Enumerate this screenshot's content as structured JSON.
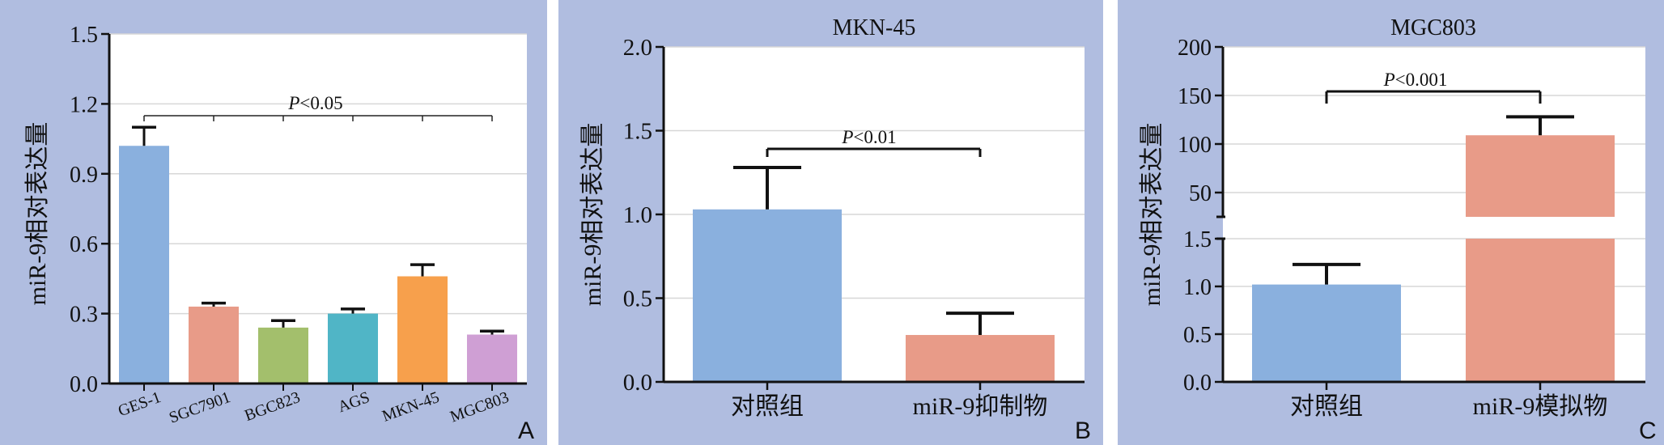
{
  "chart_data": [
    {
      "panel": "A",
      "type": "bar",
      "title": "",
      "ylabel": "miR-9相对表达量",
      "ylim": [
        0,
        1.5
      ],
      "yticks": [
        "0.0",
        "0.3",
        "0.6",
        "0.9",
        "1.2",
        "1.5"
      ],
      "categories": [
        "GES-1",
        "SGC7901",
        "BGC823",
        "AGS",
        "MKN-45",
        "MGC803"
      ],
      "values": [
        1.02,
        0.33,
        0.24,
        0.3,
        0.46,
        0.21
      ],
      "errors": [
        0.08,
        0.015,
        0.03,
        0.02,
        0.05,
        0.015
      ],
      "colors": [
        "#8ab0de",
        "#e89b88",
        "#a3bf6c",
        "#50b5c6",
        "#f7a04c",
        "#cf9fd4"
      ],
      "annotation": {
        "prefix": "P",
        "text": "<0.05"
      },
      "grid": true
    },
    {
      "panel": "B",
      "type": "bar",
      "title": "MKN-45",
      "ylabel": "miR-9相对表达量",
      "ylim": [
        0,
        2.0
      ],
      "yticks": [
        "0.0",
        "0.5",
        "1.0",
        "1.5",
        "2.0"
      ],
      "categories": [
        "对照组",
        "miR-9抑制物"
      ],
      "values": [
        1.03,
        0.28
      ],
      "errors": [
        0.25,
        0.13
      ],
      "colors": [
        "#8ab0de",
        "#e89b88"
      ],
      "annotation": {
        "prefix": "P",
        "text": "<0.01"
      },
      "grid": true
    },
    {
      "panel": "C",
      "type": "bar",
      "title": "MGC803",
      "ylabel": "miR-9相对表达量",
      "axis_break": true,
      "ylim_lower": [
        0,
        1.5
      ],
      "ylim_upper": [
        25,
        200
      ],
      "yticks_lower": [
        "0.0",
        "0.5",
        "1.0",
        "1.5"
      ],
      "yticks_upper": [
        "50",
        "100",
        "150",
        "200"
      ],
      "categories": [
        "对照组",
        "miR-9模拟物"
      ],
      "values": [
        1.02,
        109
      ],
      "errors": [
        0.21,
        19
      ],
      "colors": [
        "#8ab0de",
        "#e89b88"
      ],
      "annotation": {
        "prefix": "P",
        "text": "<0.001"
      },
      "grid": true
    }
  ],
  "panel_letters": [
    "A",
    "B",
    "C"
  ]
}
